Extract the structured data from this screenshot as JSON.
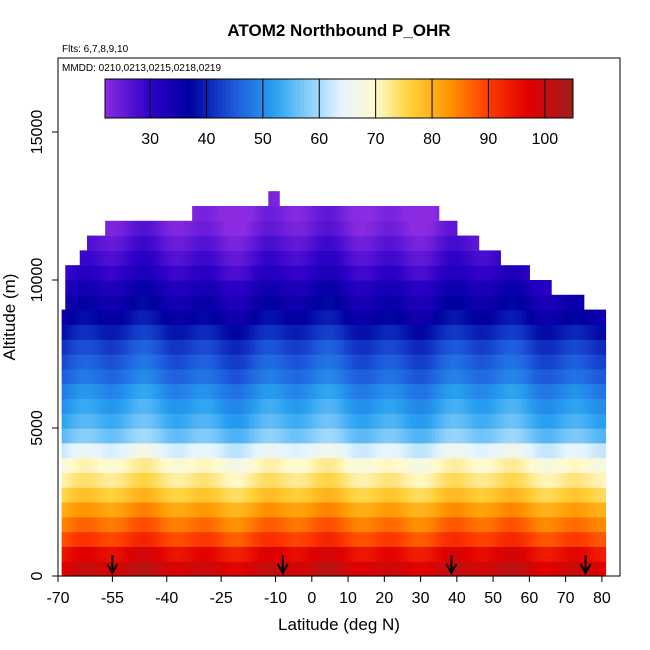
{
  "chart_data": {
    "type": "heatmap",
    "title": "ATOM2 Northbound P_OHR",
    "notes": [
      "Flts: 6,7,8,9,10",
      "MMDD: 0210,0213,0215,0218,0219"
    ],
    "xlabel": "Latitude (deg N)",
    "ylabel": "Altitude (m)",
    "xlim": [
      -70,
      85
    ],
    "ylim": [
      0,
      17500
    ],
    "x_ticks": [
      -70,
      -55,
      -40,
      -25,
      -10,
      0,
      10,
      20,
      30,
      40,
      50,
      60,
      70,
      80
    ],
    "x_tick_labels": [
      "-70",
      "-55",
      "-40",
      "-25",
      "-10",
      "0",
      "10",
      "20",
      "30",
      "40",
      "50",
      "60",
      "70",
      "80"
    ],
    "y_ticks": [
      0,
      5000,
      10000,
      15000
    ],
    "y_tick_labels": [
      "0",
      "5000",
      "10000",
      "15000"
    ],
    "grid": false,
    "colorbar": {
      "range": [
        22,
        105
      ],
      "ticks": [
        30,
        40,
        50,
        60,
        70,
        80,
        90,
        100
      ],
      "tick_labels": [
        "30",
        "40",
        "50",
        "60",
        "70",
        "80",
        "90",
        "100"
      ],
      "stops": [
        {
          "v": 22,
          "color": "#8a2be2"
        },
        {
          "v": 30,
          "color": "#2d00c8"
        },
        {
          "v": 37,
          "color": "#0000a0"
        },
        {
          "v": 45,
          "color": "#1e5adc"
        },
        {
          "v": 52,
          "color": "#28a0f0"
        },
        {
          "v": 58,
          "color": "#87cefa"
        },
        {
          "v": 64,
          "color": "#e6f4ff"
        },
        {
          "v": 70,
          "color": "#fffacd"
        },
        {
          "v": 76,
          "color": "#ffd23c"
        },
        {
          "v": 83,
          "color": "#ff9600"
        },
        {
          "v": 90,
          "color": "#ff3c00"
        },
        {
          "v": 97,
          "color": "#e00000"
        },
        {
          "v": 105,
          "color": "#a01e1e"
        }
      ]
    },
    "altitude_profile": [
      {
        "alt": 250,
        "value": 99
      },
      {
        "alt": 750,
        "value": 96
      },
      {
        "alt": 1250,
        "value": 90
      },
      {
        "alt": 1750,
        "value": 86
      },
      {
        "alt": 2250,
        "value": 82
      },
      {
        "alt": 2750,
        "value": 77
      },
      {
        "alt": 3250,
        "value": 73
      },
      {
        "alt": 3750,
        "value": 70
      },
      {
        "alt": 4250,
        "value": 64
      },
      {
        "alt": 4750,
        "value": 57
      },
      {
        "alt": 5250,
        "value": 54
      },
      {
        "alt": 5750,
        "value": 52
      },
      {
        "alt": 6250,
        "value": 50
      },
      {
        "alt": 6750,
        "value": 47
      },
      {
        "alt": 7250,
        "value": 45
      },
      {
        "alt": 7750,
        "value": 43
      },
      {
        "alt": 8250,
        "value": 40
      },
      {
        "alt": 8750,
        "value": 37
      },
      {
        "alt": 9250,
        "value": 35
      },
      {
        "alt": 9750,
        "value": 33
      },
      {
        "alt": 10250,
        "value": 30
      },
      {
        "alt": 10750,
        "value": 28
      },
      {
        "alt": 11250,
        "value": 26
      },
      {
        "alt": 11750,
        "value": 24
      },
      {
        "alt": 12250,
        "value": 23
      },
      {
        "alt": 12750,
        "value": 22
      }
    ],
    "top_boundary": [
      {
        "lat": -69,
        "alt": 9000
      },
      {
        "lat": -68,
        "alt": 10500
      },
      {
        "lat": -64,
        "alt": 11000
      },
      {
        "lat": -62,
        "alt": 11500
      },
      {
        "lat": -57,
        "alt": 12000
      },
      {
        "lat": -45,
        "alt": 12000
      },
      {
        "lat": -33,
        "alt": 12500
      },
      {
        "lat": -8,
        "alt": 12500
      },
      {
        "lat": 15,
        "alt": 12500
      },
      {
        "lat": 35,
        "alt": 12000
      },
      {
        "lat": 40,
        "alt": 11500
      },
      {
        "lat": 46,
        "alt": 11000
      },
      {
        "lat": 52,
        "alt": 10500
      },
      {
        "lat": 60,
        "alt": 10000
      },
      {
        "lat": 66,
        "alt": 9500
      },
      {
        "lat": 75,
        "alt": 9000
      },
      {
        "lat": 81,
        "alt": 8500
      }
    ],
    "spike": {
      "lat_from": -11.5,
      "lat_to": -9.5,
      "alt_top": 13000
    },
    "data_lat_range": [
      -69,
      81
    ],
    "profile_arrows_lat": [
      -55,
      -8,
      38.5,
      75.5
    ]
  }
}
